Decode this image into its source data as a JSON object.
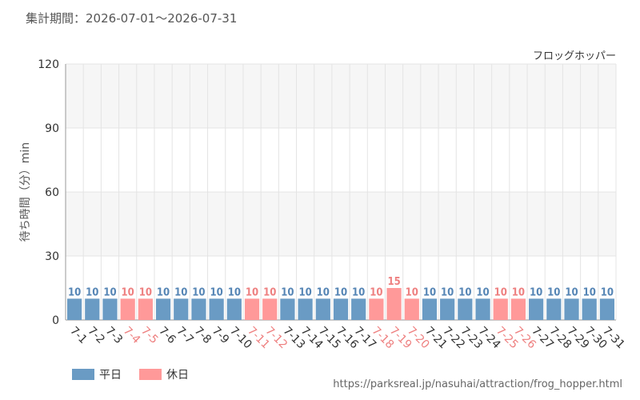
{
  "header": {
    "period_label": "集計期間：",
    "period_range": "2026-07-01～2026-07-31"
  },
  "colors": {
    "weekday": "#6a9bc4",
    "holiday": "#ff9999",
    "weekday_text": "#5585b5",
    "holiday_text": "#ee8080",
    "tick_text": "#333333",
    "grid": "#e4e4e4",
    "band": "#f6f6f6"
  },
  "chart_data": {
    "type": "bar",
    "title": "フロッグホッパー",
    "xlabel": "",
    "ylabel": "待ち時間（分）min",
    "ylim": [
      0,
      120
    ],
    "yticks": [
      0,
      30,
      60,
      90,
      120
    ],
    "grid": true,
    "categories": [
      "7-1",
      "7-2",
      "7-3",
      "7-4",
      "7-5",
      "7-6",
      "7-7",
      "7-8",
      "7-9",
      "7-10",
      "7-11",
      "7-12",
      "7-13",
      "7-14",
      "7-15",
      "7-16",
      "7-17",
      "7-18",
      "7-19",
      "7-20",
      "7-21",
      "7-22",
      "7-23",
      "7-24",
      "7-25",
      "7-26",
      "7-27",
      "7-28",
      "7-29",
      "7-30",
      "7-31"
    ],
    "values": [
      10,
      10,
      10,
      10,
      10,
      10,
      10,
      10,
      10,
      10,
      10,
      10,
      10,
      10,
      10,
      10,
      10,
      10,
      15,
      10,
      10,
      10,
      10,
      10,
      10,
      10,
      10,
      10,
      10,
      10,
      10
    ],
    "day_type": [
      "weekday",
      "weekday",
      "weekday",
      "holiday",
      "holiday",
      "weekday",
      "weekday",
      "weekday",
      "weekday",
      "weekday",
      "holiday",
      "holiday",
      "weekday",
      "weekday",
      "weekday",
      "weekday",
      "weekday",
      "holiday",
      "holiday",
      "holiday",
      "weekday",
      "weekday",
      "weekday",
      "weekday",
      "holiday",
      "holiday",
      "weekday",
      "weekday",
      "weekday",
      "weekday",
      "weekday"
    ],
    "legend": [
      {
        "key": "weekday",
        "label": "平日"
      },
      {
        "key": "holiday",
        "label": "休日"
      }
    ],
    "legend_position": "bottom-left"
  },
  "footer": {
    "source_url": "https://parksreal.jp/nasuhai/attraction/frog_hopper.html"
  }
}
